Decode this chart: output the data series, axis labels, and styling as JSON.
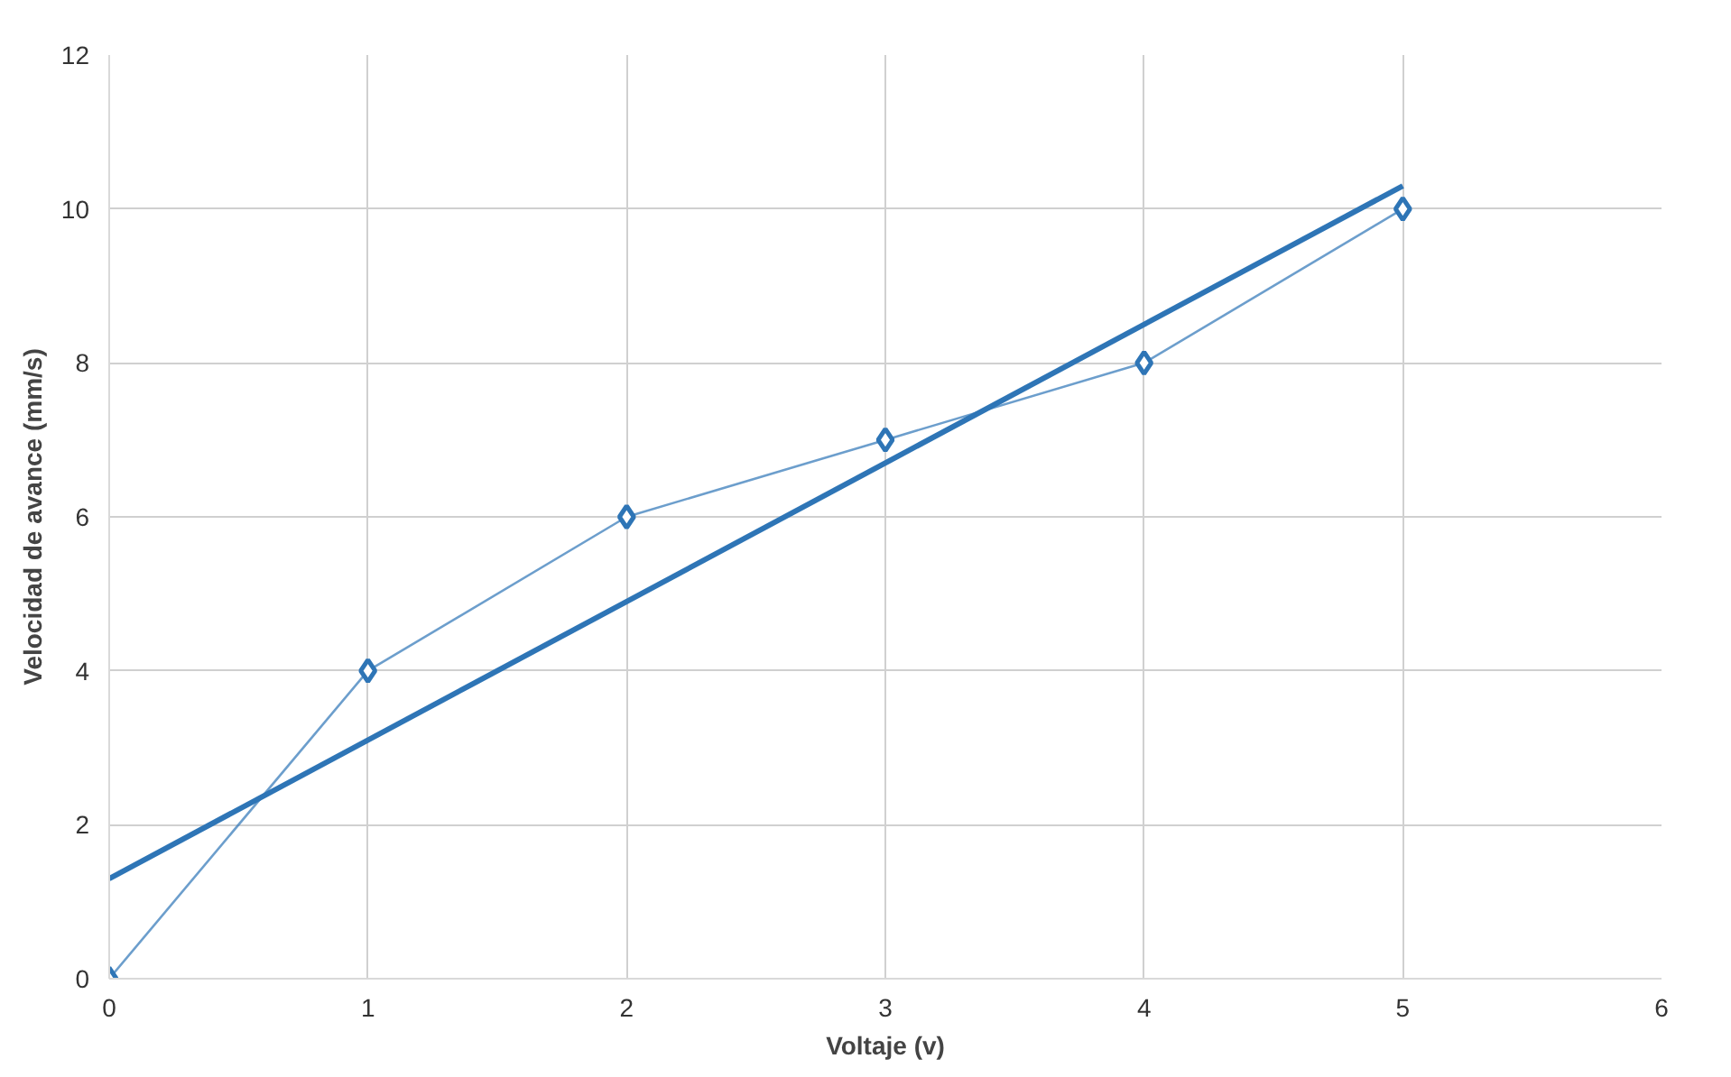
{
  "chart_data": {
    "type": "line",
    "xlabel": "Voltaje (v)",
    "ylabel": "Velocidad de avance (mm/s)",
    "xlim": [
      0,
      6
    ],
    "ylim": [
      0,
      12
    ],
    "xticks": [
      0,
      1,
      2,
      3,
      4,
      5,
      6
    ],
    "yticks": [
      0,
      2,
      4,
      6,
      8,
      10,
      12
    ],
    "grid": true,
    "series": [
      {
        "color": "#2e75b6",
        "marker": "diamond",
        "x": [
          0,
          1,
          2,
          3,
          4,
          5
        ],
        "values": [
          0,
          4,
          6,
          7,
          8,
          10
        ]
      },
      {
        "color": "#2e75b6",
        "marker": "none",
        "x": [
          0,
          5
        ],
        "values": [
          1.3,
          10.3
        ]
      }
    ]
  }
}
